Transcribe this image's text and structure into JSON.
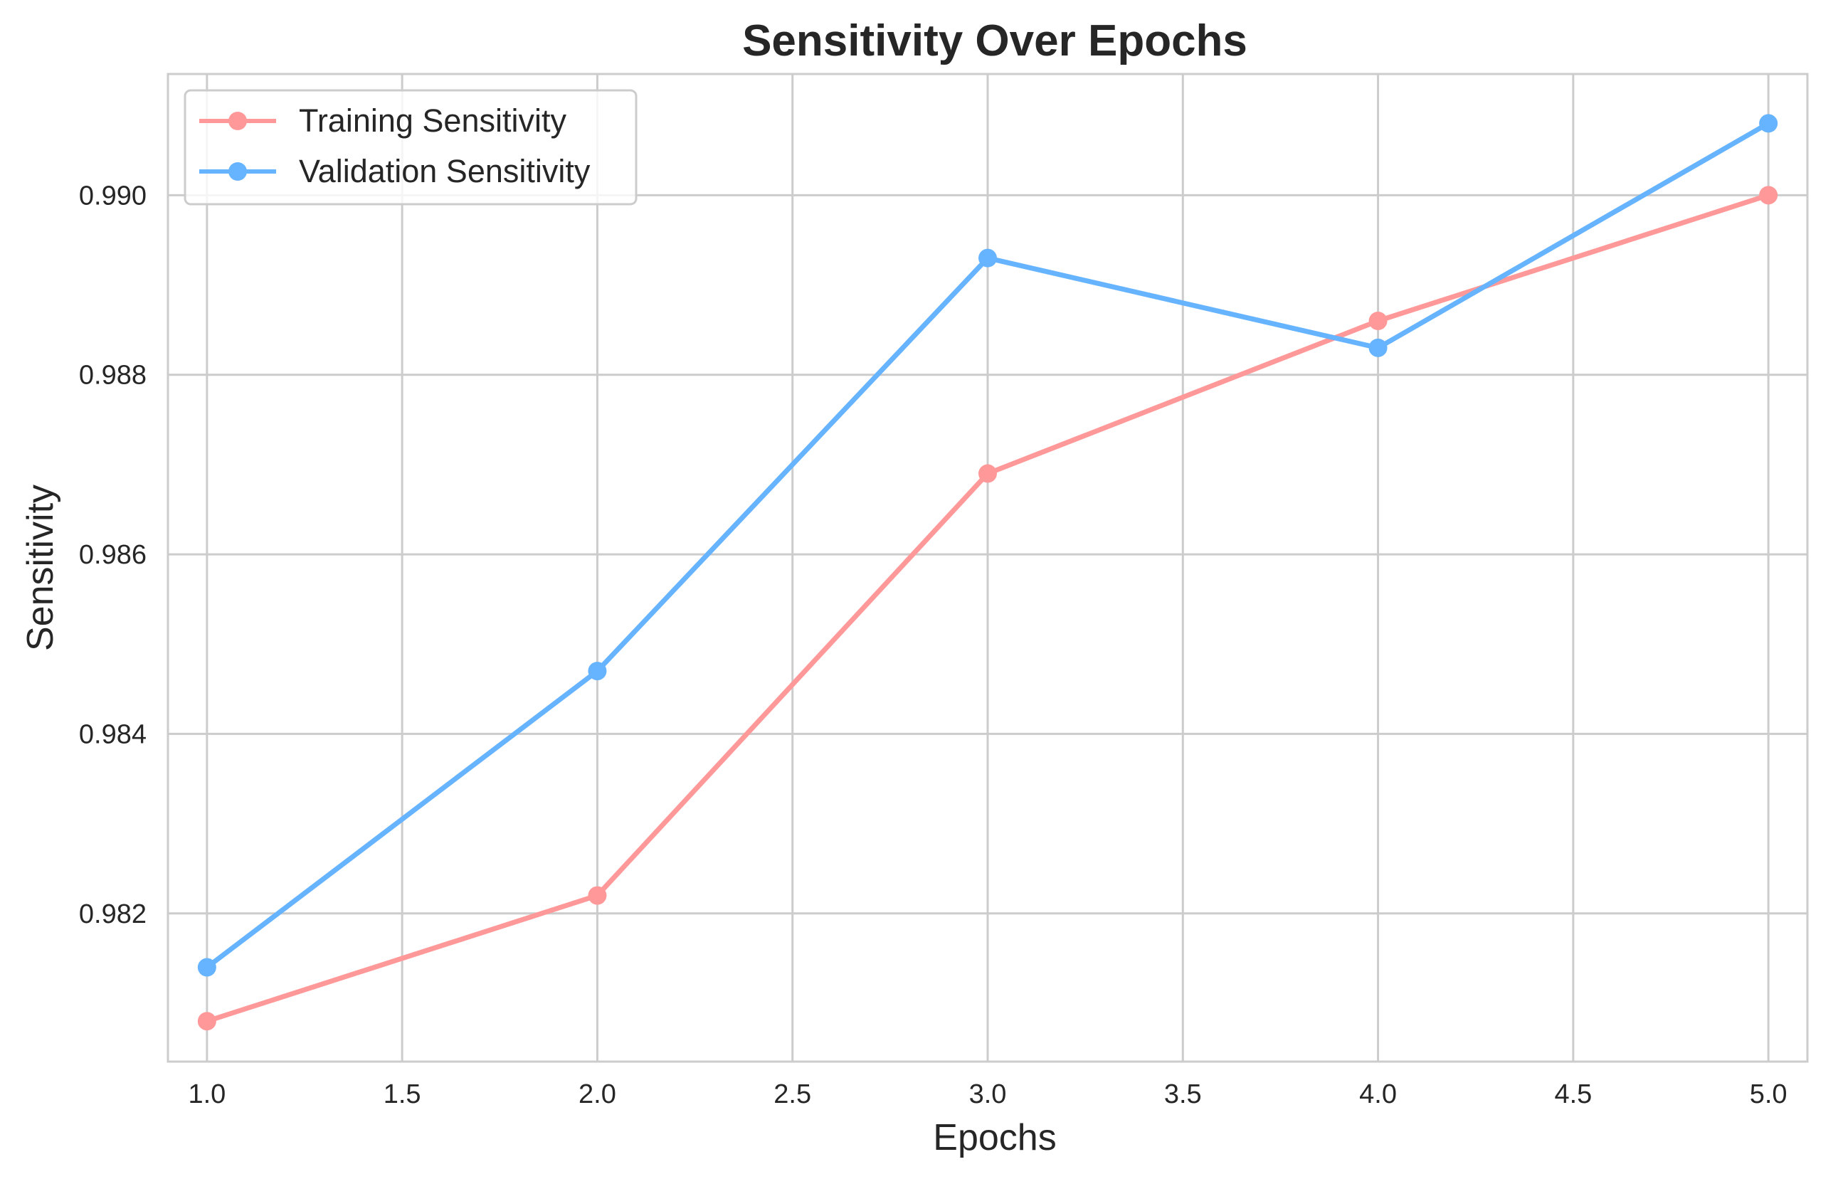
{
  "chart_data": {
    "type": "line",
    "title": "Sensitivity Over Epochs",
    "xlabel": "Epochs",
    "ylabel": "Sensitivity",
    "x": [
      1,
      2,
      3,
      4,
      5
    ],
    "xlim": [
      0.9,
      5.1
    ],
    "ylim": [
      0.98035,
      0.99135
    ],
    "xticks": [
      1.0,
      1.5,
      2.0,
      2.5,
      3.0,
      3.5,
      4.0,
      4.5,
      5.0
    ],
    "xtick_labels": [
      "1.0",
      "1.5",
      "2.0",
      "2.5",
      "3.0",
      "3.5",
      "4.0",
      "4.5",
      "5.0"
    ],
    "yticks": [
      0.982,
      0.984,
      0.986,
      0.988,
      0.99
    ],
    "ytick_labels": [
      "0.982",
      "0.984",
      "0.986",
      "0.988",
      "0.990"
    ],
    "grid": true,
    "legend_position": "top-left",
    "series": [
      {
        "name": "Training Sensitivity",
        "color": "#ff9999",
        "marker": "circle",
        "values": [
          0.9808,
          0.9822,
          0.9869,
          0.9886,
          0.99
        ]
      },
      {
        "name": "Validation Sensitivity",
        "color": "#66b3ff",
        "marker": "circle",
        "values": [
          0.9814,
          0.9847,
          0.9893,
          0.9883,
          0.9908
        ]
      }
    ]
  }
}
